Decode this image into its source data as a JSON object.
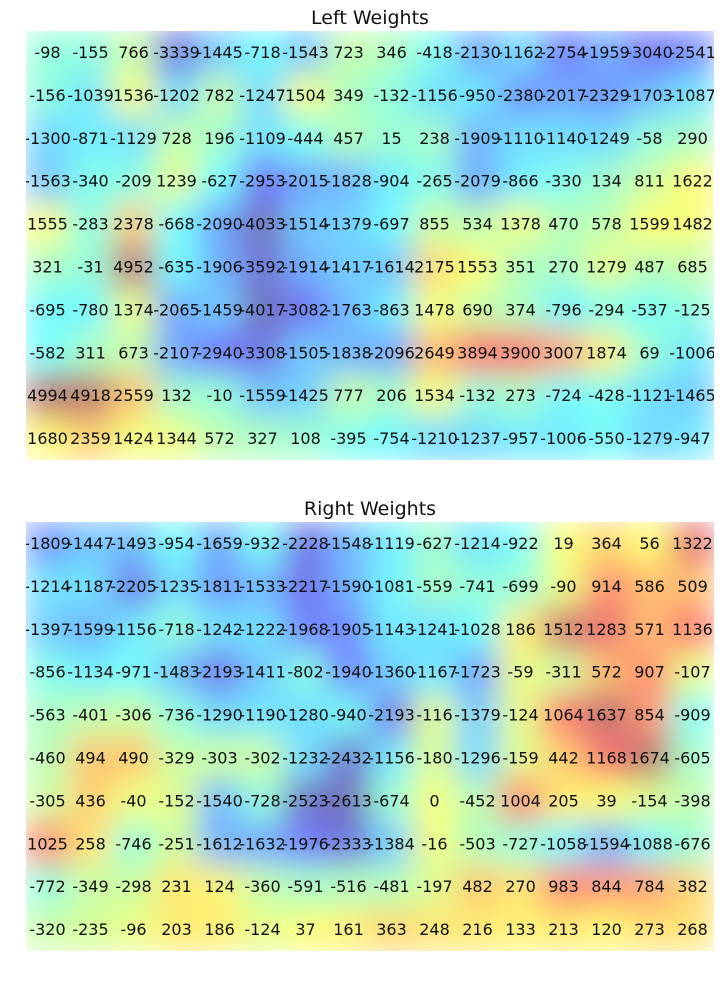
{
  "colors": {
    "colormap": "jet",
    "background": "#ffffff",
    "text": "#111111"
  },
  "chart_data": [
    {
      "type": "heatmap",
      "title": "Left Weights",
      "rows": 10,
      "cols": 16,
      "colormap": "jet",
      "values": [
        [
          -98,
          -155,
          766,
          -3339,
          -1445,
          -718,
          -1543,
          723,
          346,
          -418,
          -2130,
          -1162,
          -2754,
          -1959,
          -3040,
          -2541
        ],
        [
          -156,
          -1039,
          1536,
          -1202,
          782,
          -1247,
          1504,
          349,
          -132,
          -1156,
          -950,
          -2380,
          -2017,
          -2329,
          -1703,
          -1087
        ],
        [
          -1300,
          -871,
          -1129,
          728,
          196,
          -1109,
          -444,
          457,
          15,
          238,
          -1909,
          -1110,
          -1140,
          -1249,
          -58,
          290
        ],
        [
          -1563,
          -340,
          -209,
          1239,
          -627,
          -2953,
          -2015,
          -1828,
          -904,
          -265,
          -2079,
          -866,
          -330,
          134,
          811,
          1622
        ],
        [
          1555,
          -283,
          2378,
          -668,
          -2090,
          -4033,
          -1514,
          -1379,
          -697,
          855,
          534,
          1378,
          470,
          578,
          1599,
          1482
        ],
        [
          321,
          -31,
          4952,
          -635,
          -1906,
          -3592,
          -1914,
          -1417,
          -1614,
          2175,
          1553,
          351,
          270,
          1279,
          487,
          685
        ],
        [
          -695,
          -780,
          1374,
          -2065,
          -1459,
          -4017,
          -3082,
          -1763,
          -863,
          1478,
          690,
          374,
          -796,
          -294,
          -537,
          -125
        ],
        [
          -582,
          311,
          673,
          -2107,
          -2940,
          -3308,
          -1505,
          -1838,
          -2096,
          2649,
          3894,
          3900,
          3007,
          1874,
          69,
          -1006
        ],
        [
          4994,
          4918,
          2559,
          132,
          -10,
          -1559,
          -1425,
          777,
          206,
          1534,
          -132,
          273,
          -724,
          -428,
          -1121,
          -1465
        ],
        [
          1680,
          2359,
          1424,
          1344,
          572,
          327,
          108,
          -395,
          -754,
          -1210,
          -1237,
          -957,
          -1006,
          -550,
          -1279,
          -947
        ]
      ]
    },
    {
      "type": "heatmap",
      "title": "Right Weights",
      "rows": 10,
      "cols": 16,
      "colormap": "jet",
      "values": [
        [
          -1809,
          -1447,
          -1493,
          -954,
          -1659,
          -932,
          -2228,
          -1548,
          -1119,
          -627,
          -1214,
          -922,
          19,
          364,
          56,
          1322
        ],
        [
          -1214,
          -1187,
          -2205,
          -1235,
          -1811,
          -1533,
          -2217,
          -1590,
          -1081,
          -559,
          -741,
          -699,
          -90,
          914,
          586,
          509
        ],
        [
          -1397,
          -1599,
          -1156,
          -718,
          -1242,
          -1222,
          -1968,
          -1905,
          -1143,
          -1241,
          -1028,
          186,
          1512,
          1283,
          571,
          1136
        ],
        [
          -856,
          -1134,
          -971,
          -1483,
          -2193,
          -1411,
          -802,
          -1940,
          -1360,
          -1167,
          -1723,
          -59,
          -311,
          572,
          907,
          -107
        ],
        [
          -563,
          -401,
          -306,
          -736,
          -1290,
          -1190,
          -1280,
          -940,
          -2193,
          -116,
          -1379,
          -124,
          1064,
          1637,
          854,
          -909
        ],
        [
          -460,
          494,
          490,
          -329,
          -303,
          -302,
          -1232,
          -2432,
          -1156,
          -180,
          -1296,
          -159,
          442,
          1168,
          1674,
          -605
        ],
        [
          -305,
          436,
          -40,
          -152,
          -1540,
          -728,
          -2523,
          -2613,
          -674,
          0,
          -452,
          1004,
          205,
          39,
          -154,
          -398
        ],
        [
          1025,
          258,
          -746,
          -251,
          -1612,
          -1632,
          -1976,
          -2333,
          -1384,
          -16,
          -503,
          -727,
          -1058,
          -1594,
          -1088,
          -676
        ],
        [
          -772,
          -349,
          -298,
          231,
          124,
          -360,
          -591,
          -516,
          -481,
          -197,
          482,
          270,
          983,
          844,
          784,
          382
        ],
        [
          -320,
          -235,
          -96,
          203,
          186,
          -124,
          37,
          161,
          363,
          248,
          216,
          133,
          213,
          120,
          273,
          268
        ]
      ]
    }
  ]
}
